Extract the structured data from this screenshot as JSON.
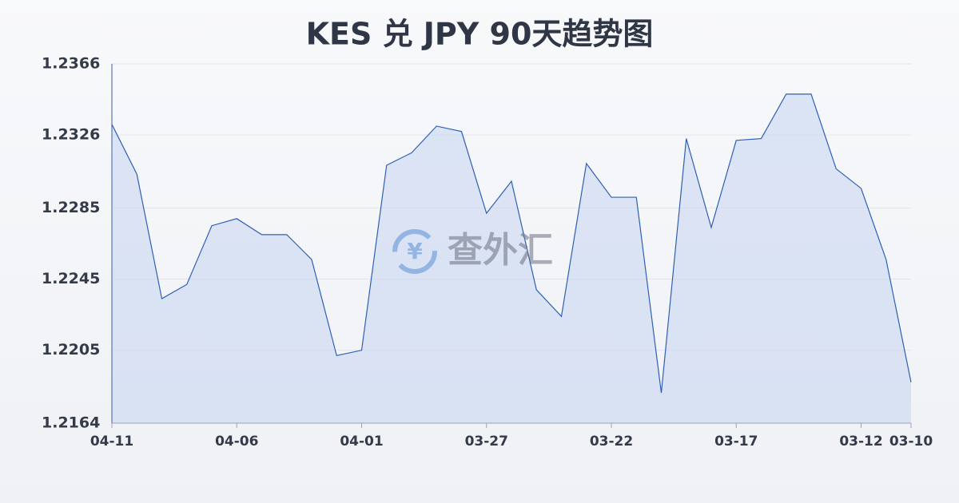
{
  "chart_data": {
    "type": "area",
    "title": "KES 兑 JPY 90天趋势图",
    "watermark": "查外汇",
    "categories": [
      "04-11",
      null,
      null,
      null,
      null,
      "04-06",
      null,
      null,
      null,
      null,
      "04-01",
      null,
      null,
      null,
      null,
      "03-27",
      null,
      null,
      null,
      null,
      "03-22",
      null,
      null,
      null,
      null,
      "03-17",
      null,
      null,
      null,
      null,
      "03-12",
      null,
      "03-10"
    ],
    "values": [
      1.2332,
      1.2304,
      1.2234,
      1.2242,
      1.2275,
      1.2279,
      1.227,
      1.227,
      1.2256,
      1.2202,
      1.2205,
      1.2309,
      1.2316,
      1.2331,
      1.2328,
      1.2282,
      1.23,
      1.2239,
      1.2224,
      1.231,
      1.2291,
      1.2291,
      1.2181,
      1.2324,
      1.2274,
      1.2323,
      1.2324,
      1.2349,
      1.2349,
      1.2307,
      1.2296,
      1.2256,
      1.2187
    ],
    "color": "#2f5fb3",
    "ylim": [
      1.2164,
      1.2366
    ],
    "yticks": [
      1.2366,
      1.2326,
      1.2285,
      1.2245,
      1.2205,
      1.2164
    ],
    "grid": true
  }
}
